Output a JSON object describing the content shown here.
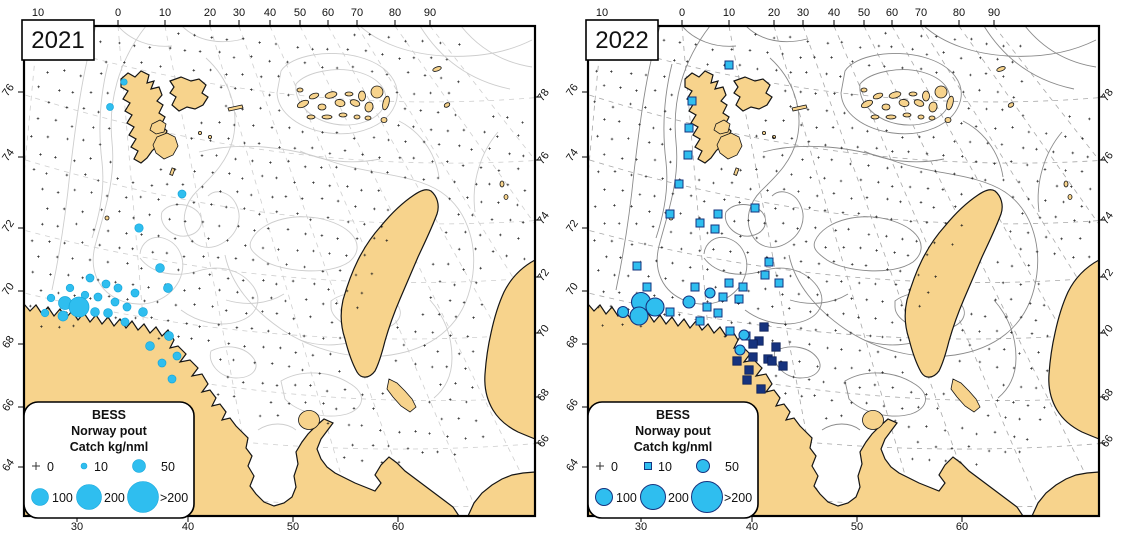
{
  "figure": {
    "survey": "BESS",
    "species": "Norway pout",
    "units": "Catch kg/nml"
  },
  "panels": [
    {
      "year": "2021",
      "small_symbol": "circle",
      "markers": {
        "circles": [
          [
            124,
            82,
            3.2
          ],
          [
            110,
            107,
            3.5
          ],
          [
            182,
            194,
            4
          ],
          [
            139,
            228,
            4.2
          ],
          [
            160,
            268,
            4.4
          ],
          [
            90,
            278,
            4
          ],
          [
            106,
            284,
            4
          ],
          [
            70,
            288,
            3.8
          ],
          [
            118,
            288,
            4
          ],
          [
            168,
            288,
            4.5
          ],
          [
            135,
            293,
            4
          ],
          [
            85,
            295,
            3.8
          ],
          [
            98,
            297,
            4
          ],
          [
            51,
            298,
            3.8
          ],
          [
            115,
            302,
            4
          ],
          [
            65,
            303,
            6.5
          ],
          [
            79,
            307,
            10
          ],
          [
            127,
            307,
            4
          ],
          [
            95,
            312,
            4.4
          ],
          [
            108,
            313,
            4.4
          ],
          [
            143,
            312,
            4.4
          ],
          [
            45,
            313,
            3.8
          ],
          [
            63,
            316,
            5
          ],
          [
            125,
            322,
            4
          ],
          [
            169,
            336,
            4.5
          ],
          [
            150,
            346,
            4.4
          ],
          [
            177,
            356,
            4
          ],
          [
            162,
            363,
            4
          ],
          [
            172,
            379,
            4
          ]
        ],
        "squares_cyan": [],
        "squares_navy": []
      }
    },
    {
      "year": "2022",
      "small_symbol": "square",
      "markers": {
        "circles": [
          [
            77,
            302,
            9.5
          ],
          [
            91,
            307,
            9
          ],
          [
            75,
            316,
            9
          ],
          [
            59,
            312,
            5.5
          ],
          [
            125,
            302,
            6
          ],
          [
            146,
            293,
            5
          ],
          [
            180,
            335,
            5
          ],
          [
            176,
            350,
            5
          ]
        ],
        "squares_cyan": [
          [
            165,
            65
          ],
          [
            128,
            101
          ],
          [
            125,
            128
          ],
          [
            124,
            155
          ],
          [
            115,
            184
          ],
          [
            106,
            214
          ],
          [
            136,
            223
          ],
          [
            151,
            229
          ],
          [
            154,
            214
          ],
          [
            191,
            208
          ],
          [
            73,
            266
          ],
          [
            205,
            262
          ],
          [
            201,
            275
          ],
          [
            215,
            283
          ],
          [
            83,
            287
          ],
          [
            131,
            287
          ],
          [
            179,
            287
          ],
          [
            165,
            283
          ],
          [
            159,
            297
          ],
          [
            175,
            299
          ],
          [
            143,
            307
          ],
          [
            106,
            312
          ],
          [
            154,
            313
          ],
          [
            136,
            321
          ],
          [
            166,
            331
          ],
          [
            182,
            336
          ]
        ],
        "squares_navy": [
          [
            200,
            327
          ],
          [
            195,
            341
          ],
          [
            189,
            344
          ],
          [
            212,
            347
          ],
          [
            189,
            357
          ],
          [
            204,
            359
          ],
          [
            208,
            361
          ],
          [
            219,
            366
          ],
          [
            173,
            361
          ],
          [
            185,
            370
          ],
          [
            183,
            380
          ],
          [
            197,
            389
          ]
        ]
      }
    }
  ],
  "axes": {
    "top": [
      "10",
      "0",
      "10",
      "20",
      "30",
      "40",
      "50",
      "60",
      "70",
      "80",
      "90"
    ],
    "bottom": [
      "30",
      "40",
      "50",
      "60"
    ],
    "left": [
      "76",
      "74",
      "72",
      "70",
      "68",
      "66",
      "64"
    ],
    "right": [
      "78",
      "76",
      "74",
      "72",
      "70",
      "68",
      "66"
    ]
  },
  "legend": {
    "title_lines": [
      "BESS",
      "Norway pout",
      "Catch kg/nml"
    ],
    "row1": [
      {
        "label": "0"
      },
      {
        "label": "10"
      },
      {
        "label": "50"
      }
    ],
    "row2": [
      {
        "label": "100"
      },
      {
        "label": "200"
      },
      {
        "label": ">200"
      }
    ]
  },
  "colors": {
    "land": "#F7D38C",
    "cyan": "#2FBEEF",
    "cyan_stroke_2021": "#17A7DB",
    "navy": "#16337E",
    "navy_dark": "#0B1F55",
    "contour_2021": "#CDCDCD",
    "contour_2022": "#8A8A8A",
    "grat_2021": "#CFCFCF",
    "grat_2022": "#A8A8A8",
    "station": "#1B1B1B"
  },
  "chart_data": {
    "type": "map",
    "title": "BESS Norway pout Catch kg/nml",
    "panel_years": [
      "2021",
      "2022"
    ],
    "size_classes": [
      "0",
      "10",
      "50",
      "100",
      "200",
      ">200"
    ],
    "top_axis_longitudes": [
      "10",
      "0",
      "10",
      "20",
      "30",
      "40",
      "50",
      "60",
      "70",
      "80",
      "90"
    ],
    "bottom_axis_longitudes": [
      "30",
      "40",
      "50",
      "60"
    ],
    "left_axis_latitudes": [
      "76",
      "74",
      "72",
      "70",
      "68",
      "66",
      "64"
    ],
    "right_axis_latitudes": [
      "78",
      "76",
      "74",
      "72",
      "70",
      "68",
      "66"
    ]
  }
}
